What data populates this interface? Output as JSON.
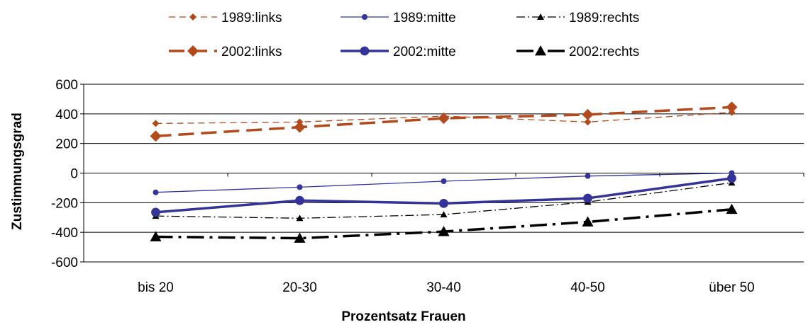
{
  "chart_data": {
    "type": "line",
    "categories": [
      "bis 20",
      "20-30",
      "30-40",
      "40-50",
      "über 50"
    ],
    "xlabel": "Prozentsatz Frauen",
    "ylabel": "Zustimmungsgrad",
    "ylim": [
      -600,
      600
    ],
    "yticks": [
      600,
      400,
      200,
      0,
      -200,
      -400,
      -600
    ],
    "grid": "horizontal",
    "legend_position": "top",
    "series": [
      {
        "name": "1989:links",
        "values": [
          335,
          345,
          385,
          345,
          410
        ],
        "color": "#b34a1c",
        "dash": "short",
        "marker": "diamond",
        "weight": "thin"
      },
      {
        "name": "1989:mitte",
        "values": [
          -130,
          -95,
          -55,
          -20,
          0
        ],
        "color": "#333399",
        "dash": "solid",
        "marker": "circle",
        "weight": "thin"
      },
      {
        "name": "1989:rechts",
        "values": [
          -290,
          -305,
          -280,
          -195,
          -65
        ],
        "color": "#000000",
        "dash": "dashdot",
        "marker": "triangle",
        "weight": "thin"
      },
      {
        "name": "2002:links",
        "values": [
          250,
          310,
          370,
          395,
          445
        ],
        "color": "#b34a1c",
        "dash": "long",
        "marker": "diamond",
        "weight": "thick"
      },
      {
        "name": "2002:mitte",
        "values": [
          -265,
          -185,
          -205,
          -170,
          -35
        ],
        "color": "#333399",
        "dash": "solid",
        "marker": "circle",
        "weight": "thick"
      },
      {
        "name": "2002:rechts",
        "values": [
          -430,
          -440,
          -395,
          -330,
          -245
        ],
        "color": "#000000",
        "dash": "longdot",
        "marker": "triangle",
        "weight": "thick"
      }
    ]
  }
}
